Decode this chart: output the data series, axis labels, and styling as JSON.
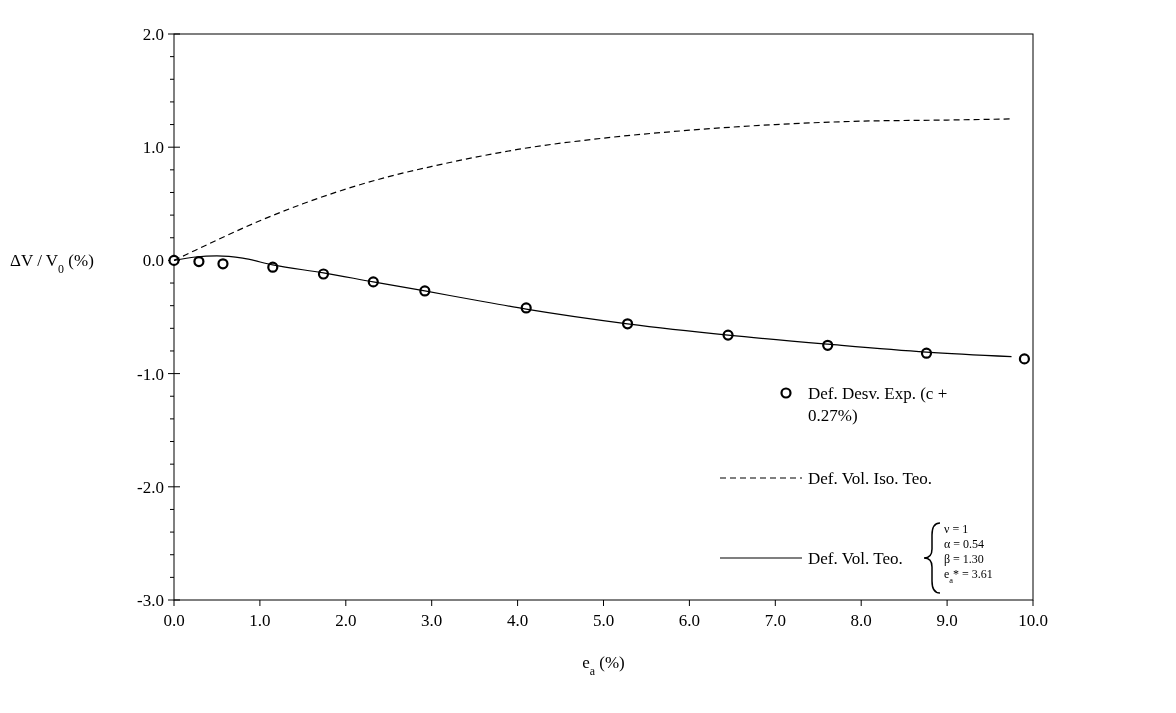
{
  "chart_data": {
    "type": "line",
    "xlabel": "e$_{a}$ (%)",
    "ylabel": "ΔV / V$_{0}$ (%)",
    "xlim": [
      0,
      10
    ],
    "ylim": [
      -3,
      2
    ],
    "xticks": [
      {
        "value": 0,
        "label": "0.0"
      },
      {
        "value": 1,
        "label": "1.0"
      },
      {
        "value": 2,
        "label": "2.0"
      },
      {
        "value": 3,
        "label": "3.0"
      },
      {
        "value": 4,
        "label": "4.0"
      },
      {
        "value": 5,
        "label": "5.0"
      },
      {
        "value": 6,
        "label": "6.0"
      },
      {
        "value": 7,
        "label": "7.0"
      },
      {
        "value": 8,
        "label": "8.0"
      },
      {
        "value": 9,
        "label": "9.0"
      },
      {
        "value": 10,
        "label": "10.0"
      }
    ],
    "yticks": [
      {
        "value": -3,
        "label": "-3.0"
      },
      {
        "value": -2.8,
        "label": null
      },
      {
        "value": -2.6,
        "label": null
      },
      {
        "value": -2.4,
        "label": null
      },
      {
        "value": -2.2,
        "label": null
      },
      {
        "value": -2,
        "label": "-2.0"
      },
      {
        "value": -1.8,
        "label": null
      },
      {
        "value": -1.6,
        "label": null
      },
      {
        "value": -1.4,
        "label": null
      },
      {
        "value": -1.2,
        "label": null
      },
      {
        "value": -1,
        "label": "-1.0"
      },
      {
        "value": -0.8,
        "label": null
      },
      {
        "value": -0.6,
        "label": null
      },
      {
        "value": -0.4,
        "label": null
      },
      {
        "value": -0.2,
        "label": null
      },
      {
        "value": 0,
        "label": "0.0"
      },
      {
        "value": 0.2,
        "label": null
      },
      {
        "value": 0.4,
        "label": null
      },
      {
        "value": 0.6,
        "label": null
      },
      {
        "value": 0.8,
        "label": null
      },
      {
        "value": 1,
        "label": "1.0"
      },
      {
        "value": 1.2,
        "label": null
      },
      {
        "value": 1.4,
        "label": null
      },
      {
        "value": 1.6,
        "label": null
      },
      {
        "value": 1.8,
        "label": null
      },
      {
        "value": 2,
        "label": "2.0"
      }
    ],
    "grid": false,
    "legend": "bottom right",
    "series": [
      {
        "name": "Def. Desv. Exp. (c + 0.27%)",
        "type": "scatter",
        "marker": "circle",
        "color": "#000000",
        "x": [
          0,
          0.29,
          0.57,
          1.15,
          1.74,
          2.32,
          2.92,
          4.1,
          5.28,
          6.45,
          7.61,
          8.76,
          9.9
        ],
        "values": [
          0,
          -0.01,
          -0.03,
          -0.06,
          -0.12,
          -0.19,
          -0.27,
          -0.42,
          -0.56,
          -0.66,
          -0.75,
          -0.82,
          -0.87
        ]
      },
      {
        "name": "Def. Vol. Iso. Teo.",
        "line_style": "dashed",
        "marker": "none",
        "color": "#000000",
        "x": [
          0,
          0.25,
          0.5,
          1,
          1.5,
          2,
          2.5,
          3,
          3.5,
          4,
          5,
          6,
          7,
          8,
          9,
          9.75
        ],
        "values": [
          0,
          0.09,
          0.18,
          0.35,
          0.5,
          0.63,
          0.74,
          0.83,
          0.91,
          0.98,
          1.08,
          1.15,
          1.2,
          1.23,
          1.24,
          1.25
        ]
      },
      {
        "name": "Def. Vol. Teo.",
        "line_style": "solid",
        "marker": "none",
        "color": "#000000",
        "x": [
          0,
          0.25,
          0.5,
          0.8,
          1.15,
          1.74,
          2.32,
          2.92,
          3.5,
          4.1,
          5.28,
          6.45,
          7.61,
          8.76,
          9.75
        ],
        "values": [
          0,
          0.03,
          0.04,
          0.02,
          -0.04,
          -0.11,
          -0.19,
          -0.27,
          -0.35,
          -0.43,
          -0.56,
          -0.66,
          -0.74,
          -0.81,
          -0.85
        ]
      }
    ],
    "annotations": [
      "ν = 1",
      "α = 0.54",
      "β = 1.30",
      "e$_{a}$* = 3.61"
    ]
  }
}
